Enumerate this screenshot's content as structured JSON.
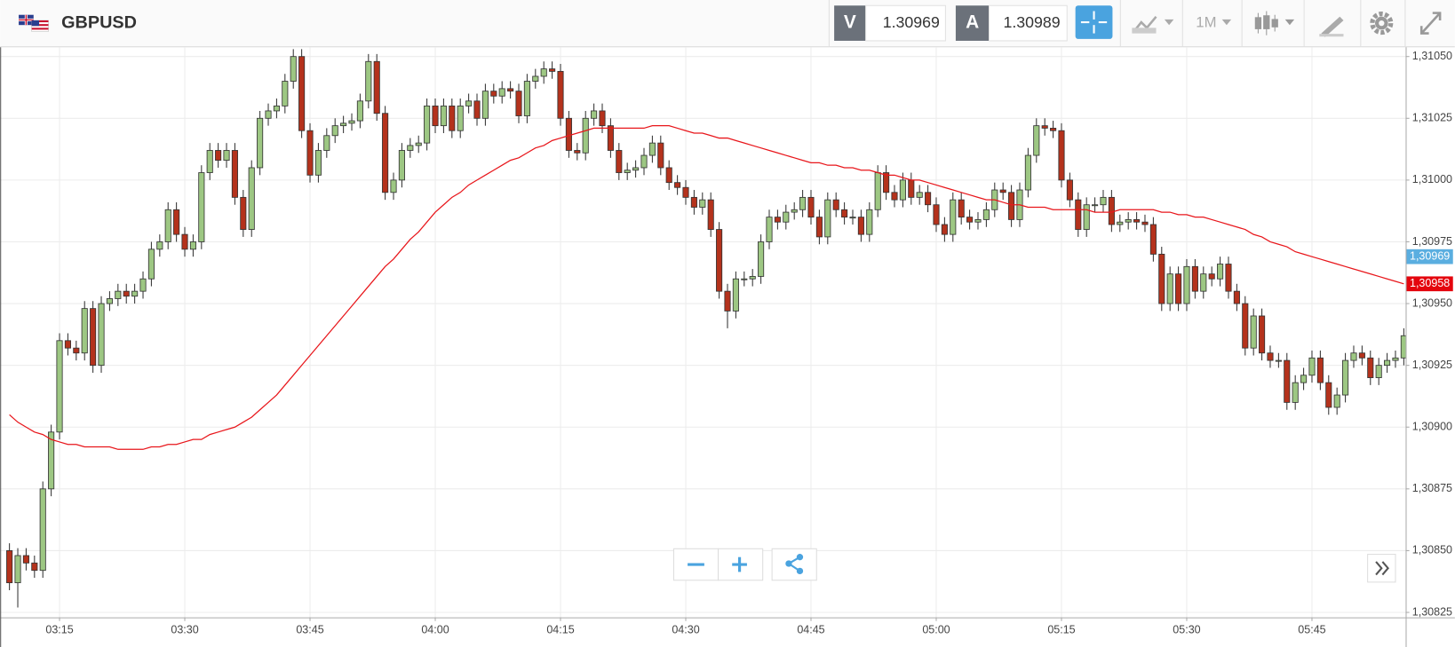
{
  "header": {
    "symbol": "GBPUSD",
    "bid_label": "V",
    "bid": "1.30969",
    "ask_label": "A",
    "ask": "1.30989",
    "timeframe": "1M"
  },
  "chart_data": {
    "type": "candlestick",
    "categories": [
      "03:09",
      "03:10",
      "03:11",
      "03:12",
      "03:13",
      "03:14",
      "03:15",
      "03:16",
      "03:17",
      "03:18",
      "03:19",
      "03:20",
      "03:21",
      "03:22",
      "03:23",
      "03:24",
      "03:25",
      "03:26",
      "03:27",
      "03:28",
      "03:29",
      "03:30",
      "03:31",
      "03:32",
      "03:33",
      "03:34",
      "03:35",
      "03:36",
      "03:37",
      "03:38",
      "03:39",
      "03:40",
      "03:41",
      "03:42",
      "03:43",
      "03:44",
      "03:45",
      "03:46",
      "03:47",
      "03:48",
      "03:49",
      "03:50",
      "03:51",
      "03:52",
      "03:53",
      "03:54",
      "03:55",
      "03:56",
      "03:57",
      "03:58",
      "03:59",
      "04:00",
      "04:01",
      "04:02",
      "04:03",
      "04:04",
      "04:05",
      "04:06",
      "04:07",
      "04:08",
      "04:09",
      "04:10",
      "04:11",
      "04:12",
      "04:13",
      "04:14",
      "04:15",
      "04:16",
      "04:17",
      "04:18",
      "04:19",
      "04:20",
      "04:21",
      "04:22",
      "04:23",
      "04:24",
      "04:25",
      "04:26",
      "04:27",
      "04:28",
      "04:29",
      "04:30",
      "04:31",
      "04:32",
      "04:33",
      "04:34",
      "04:35",
      "04:36",
      "04:37",
      "04:38",
      "04:39",
      "04:40",
      "04:41",
      "04:42",
      "04:43",
      "04:44",
      "04:45",
      "04:46",
      "04:47",
      "04:48",
      "04:49",
      "04:50",
      "04:51",
      "04:52",
      "04:53",
      "04:54",
      "04:55",
      "04:56",
      "04:57",
      "04:58",
      "04:59",
      "05:00",
      "05:01",
      "05:02",
      "05:03",
      "05:04",
      "05:05",
      "05:06",
      "05:07",
      "05:08",
      "05:09",
      "05:10",
      "05:11",
      "05:12",
      "05:13",
      "05:14",
      "05:15",
      "05:16",
      "05:17",
      "05:18",
      "05:19",
      "05:20",
      "05:21",
      "05:22",
      "05:23",
      "05:24",
      "05:25",
      "05:26",
      "05:27",
      "05:28",
      "05:29",
      "05:30",
      "05:31",
      "05:32",
      "05:33",
      "05:34",
      "05:35",
      "05:36",
      "05:37",
      "05:38",
      "05:39",
      "05:40",
      "05:41",
      "05:42",
      "05:43",
      "05:44",
      "05:45",
      "05:46",
      "05:47",
      "05:48",
      "05:49",
      "05:50",
      "05:51",
      "05:52",
      "05:53",
      "05:54",
      "05:55",
      "05:56"
    ],
    "open": [
      1.3085,
      1.30837,
      1.30848,
      1.30845,
      1.30842,
      1.30875,
      1.30898,
      1.30935,
      1.30932,
      1.3093,
      1.30948,
      1.30925,
      1.3095,
      1.30952,
      1.30955,
      1.30953,
      1.30955,
      1.3096,
      1.30972,
      1.30975,
      1.30988,
      1.30978,
      1.30972,
      1.30975,
      1.31003,
      1.31012,
      1.31008,
      1.31012,
      1.30993,
      1.3098,
      1.31005,
      1.31025,
      1.31028,
      1.3103,
      1.3104,
      1.3105,
      1.3102,
      1.31002,
      1.31012,
      1.31018,
      1.31022,
      1.31023,
      1.31024,
      1.31032,
      1.31048,
      1.31027,
      1.30995,
      1.31,
      1.31012,
      1.31014,
      1.31015,
      1.3103,
      1.31022,
      1.3103,
      1.3102,
      1.3103,
      1.31032,
      1.31025,
      1.31036,
      1.31034,
      1.31037,
      1.31036,
      1.31026,
      1.3104,
      1.31042,
      1.31045,
      1.31044,
      1.31025,
      1.31012,
      1.31011,
      1.31025,
      1.31028,
      1.31022,
      1.31012,
      1.31003,
      1.31004,
      1.31005,
      1.3101,
      1.31015,
      1.31005,
      1.30999,
      1.30997,
      1.30993,
      1.30989,
      1.30992,
      1.3098,
      1.30955,
      1.30947,
      1.3096,
      1.3096,
      1.30961,
      1.30975,
      1.30985,
      1.30983,
      1.30987,
      1.30988,
      1.30993,
      1.30985,
      1.30977,
      1.30992,
      1.30988,
      1.30985,
      1.30985,
      1.30978,
      1.30988,
      1.31003,
      1.30995,
      1.30992,
      1.31,
      1.30993,
      1.30995,
      1.3099,
      1.30982,
      1.30978,
      1.30992,
      1.30985,
      1.30983,
      1.30984,
      1.30988,
      1.30996,
      1.30995,
      1.30984,
      1.30996,
      1.3101,
      1.31022,
      1.31021,
      1.3102,
      1.31,
      1.30992,
      1.3098,
      1.3099,
      1.3099,
      1.30993,
      1.30982,
      1.30983,
      1.30984,
      1.30983,
      1.30982,
      1.3097,
      1.3095,
      1.30962,
      1.3095,
      1.30965,
      1.30955,
      1.30962,
      1.3096,
      1.30966,
      1.30955,
      1.3095,
      1.30932,
      1.30945,
      1.3093,
      1.30927,
      1.30927,
      1.3091,
      1.30918,
      1.30921,
      1.30928,
      1.30918,
      1.30908,
      1.30913,
      1.30927,
      1.3093,
      1.30928,
      1.3092,
      1.30925,
      1.30927,
      1.30928
    ],
    "high": [
      1.30853,
      1.30851,
      1.30851,
      1.30848,
      1.30878,
      1.30901,
      1.30938,
      1.30938,
      1.30935,
      1.30951,
      1.30951,
      1.30953,
      1.30955,
      1.30958,
      1.30958,
      1.30958,
      1.30963,
      1.30975,
      1.30978,
      1.30991,
      1.30991,
      1.30981,
      1.30978,
      1.31006,
      1.31015,
      1.31015,
      1.31015,
      1.31015,
      1.30996,
      1.31008,
      1.31028,
      1.31031,
      1.31033,
      1.31043,
      1.31053,
      1.31053,
      1.31023,
      1.31015,
      1.31021,
      1.31025,
      1.31026,
      1.31027,
      1.31035,
      1.31051,
      1.31051,
      1.3103,
      1.31003,
      1.31015,
      1.31017,
      1.31018,
      1.31033,
      1.31033,
      1.31033,
      1.31033,
      1.31033,
      1.31035,
      1.31035,
      1.31039,
      1.31039,
      1.3104,
      1.3104,
      1.31039,
      1.31043,
      1.31045,
      1.31048,
      1.31048,
      1.31047,
      1.31028,
      1.31015,
      1.31028,
      1.31031,
      1.31031,
      1.31025,
      1.31015,
      1.31007,
      1.31008,
      1.31013,
      1.31018,
      1.31018,
      1.31008,
      1.31002,
      1.31,
      1.30996,
      1.30995,
      1.30995,
      1.30983,
      1.30958,
      1.30963,
      1.30963,
      1.30964,
      1.30978,
      1.30988,
      1.30988,
      1.3099,
      1.30991,
      1.30996,
      1.30996,
      1.30988,
      1.30995,
      1.30995,
      1.30991,
      1.30988,
      1.30988,
      1.30991,
      1.31006,
      1.31006,
      1.30998,
      1.31003,
      1.31003,
      1.30998,
      1.30998,
      1.30993,
      1.30985,
      1.30995,
      1.30995,
      1.30988,
      1.30987,
      1.30991,
      1.30999,
      1.30999,
      1.30998,
      1.30999,
      1.31013,
      1.31025,
      1.31025,
      1.31024,
      1.31023,
      1.31003,
      1.30995,
      1.30993,
      1.30993,
      1.30996,
      1.30996,
      1.30986,
      1.30987,
      1.30987,
      1.30986,
      1.30985,
      1.30973,
      1.30965,
      1.30965,
      1.30968,
      1.30968,
      1.30965,
      1.30965,
      1.30969,
      1.30969,
      1.30958,
      1.30953,
      1.30948,
      1.30948,
      1.30933,
      1.3093,
      1.3093,
      1.30921,
      1.30924,
      1.30931,
      1.30931,
      1.30921,
      1.30916,
      1.3093,
      1.30933,
      1.30933,
      1.30931,
      1.30928,
      1.3093,
      1.30931,
      1.3094
    ],
    "low": [
      1.30834,
      1.30827,
      1.30842,
      1.30839,
      1.30839,
      1.30872,
      1.30895,
      1.30929,
      1.30927,
      1.30927,
      1.30922,
      1.30922,
      1.30947,
      1.30949,
      1.3095,
      1.3095,
      1.30952,
      1.30957,
      1.30969,
      1.30972,
      1.30975,
      1.30969,
      1.30969,
      1.30972,
      1.31,
      1.31005,
      1.31005,
      1.3099,
      1.30977,
      1.30977,
      1.31002,
      1.31022,
      1.31025,
      1.31027,
      1.31037,
      1.31017,
      1.30999,
      1.30999,
      1.31009,
      1.31015,
      1.31019,
      1.3102,
      1.31021,
      1.31029,
      1.31024,
      1.30992,
      1.30992,
      1.30997,
      1.31009,
      1.31011,
      1.31012,
      1.31019,
      1.31019,
      1.31017,
      1.31017,
      1.31027,
      1.31022,
      1.31022,
      1.31031,
      1.31031,
      1.31033,
      1.31023,
      1.31023,
      1.31037,
      1.31039,
      1.31041,
      1.31022,
      1.31009,
      1.31008,
      1.31008,
      1.31022,
      1.31019,
      1.31009,
      1.31,
      1.31,
      1.31001,
      1.31002,
      1.31007,
      1.31002,
      1.30996,
      1.30994,
      1.3099,
      1.30986,
      1.30986,
      1.30977,
      1.30952,
      1.3094,
      1.30944,
      1.30957,
      1.30957,
      1.30958,
      1.30972,
      1.3098,
      1.3098,
      1.30984,
      1.30985,
      1.30982,
      1.30974,
      1.30974,
      1.30985,
      1.30982,
      1.30982,
      1.30975,
      1.30975,
      1.30985,
      1.30992,
      1.30989,
      1.30989,
      1.3099,
      1.3099,
      1.30987,
      1.30979,
      1.30975,
      1.30975,
      1.30982,
      1.3098,
      1.3098,
      1.30981,
      1.30985,
      1.30992,
      1.30981,
      1.30981,
      1.30993,
      1.31007,
      1.31018,
      1.31017,
      1.30997,
      1.30989,
      1.30977,
      1.30977,
      1.30987,
      1.30987,
      1.30979,
      1.30979,
      1.3098,
      1.3098,
      1.30979,
      1.30967,
      1.30947,
      1.30947,
      1.30947,
      1.30947,
      1.30952,
      1.30952,
      1.30957,
      1.30957,
      1.30952,
      1.30947,
      1.30929,
      1.30929,
      1.30927,
      1.30924,
      1.30924,
      1.30907,
      1.30907,
      1.30915,
      1.30918,
      1.30915,
      1.30905,
      1.30905,
      1.3091,
      1.30924,
      1.30925,
      1.30917,
      1.30917,
      1.30922,
      1.30924,
      1.30925
    ],
    "close": [
      1.30837,
      1.30848,
      1.30845,
      1.30842,
      1.30875,
      1.30898,
      1.30935,
      1.30932,
      1.3093,
      1.30948,
      1.30925,
      1.3095,
      1.30952,
      1.30955,
      1.30953,
      1.30955,
      1.3096,
      1.30972,
      1.30975,
      1.30988,
      1.30978,
      1.30972,
      1.30975,
      1.31003,
      1.31012,
      1.31008,
      1.31012,
      1.30993,
      1.3098,
      1.31005,
      1.31025,
      1.31028,
      1.3103,
      1.3104,
      1.3105,
      1.3102,
      1.31002,
      1.31012,
      1.31018,
      1.31022,
      1.31023,
      1.31024,
      1.31032,
      1.31048,
      1.31027,
      1.30995,
      1.31,
      1.31012,
      1.31014,
      1.31015,
      1.3103,
      1.31022,
      1.3103,
      1.3102,
      1.3103,
      1.31032,
      1.31025,
      1.31036,
      1.31034,
      1.31037,
      1.31036,
      1.31026,
      1.3104,
      1.31042,
      1.31045,
      1.31044,
      1.31025,
      1.31012,
      1.31011,
      1.31025,
      1.31028,
      1.31022,
      1.31012,
      1.31003,
      1.31004,
      1.31005,
      1.3101,
      1.31015,
      1.31005,
      1.30999,
      1.30997,
      1.30993,
      1.30989,
      1.30992,
      1.3098,
      1.30955,
      1.30947,
      1.3096,
      1.3096,
      1.30961,
      1.30975,
      1.30985,
      1.30983,
      1.30987,
      1.30988,
      1.30993,
      1.30985,
      1.30977,
      1.30992,
      1.30988,
      1.30985,
      1.30985,
      1.30978,
      1.30988,
      1.31003,
      1.30995,
      1.30992,
      1.31,
      1.30993,
      1.30995,
      1.3099,
      1.30982,
      1.30978,
      1.30992,
      1.30985,
      1.30983,
      1.30984,
      1.30988,
      1.30996,
      1.30995,
      1.30984,
      1.30996,
      1.3101,
      1.31022,
      1.31021,
      1.3102,
      1.31,
      1.30992,
      1.3098,
      1.3099,
      1.3099,
      1.30993,
      1.30982,
      1.30983,
      1.30984,
      1.30983,
      1.30982,
      1.3097,
      1.3095,
      1.30962,
      1.3095,
      1.30965,
      1.30955,
      1.30962,
      1.3096,
      1.30966,
      1.30955,
      1.3095,
      1.30932,
      1.30945,
      1.3093,
      1.30927,
      1.30927,
      1.3091,
      1.30918,
      1.30921,
      1.30928,
      1.30918,
      1.30908,
      1.30913,
      1.30927,
      1.3093,
      1.30928,
      1.3092,
      1.30925,
      1.30927,
      1.30928,
      1.30937
    ],
    "up_color": "#9dc783",
    "down_color": "#b4321c",
    "series": [
      {
        "color": "#e8161b",
        "values": [
          1.30905,
          1.30902,
          1.309,
          1.30898,
          1.30897,
          1.30895,
          1.30894,
          1.30893,
          1.30893,
          1.30892,
          1.30892,
          1.30892,
          1.30892,
          1.30891,
          1.30891,
          1.30891,
          1.30891,
          1.30892,
          1.30892,
          1.30893,
          1.30893,
          1.30894,
          1.30895,
          1.30895,
          1.30897,
          1.30898,
          1.30899,
          1.309,
          1.30902,
          1.30904,
          1.30907,
          1.3091,
          1.30913,
          1.30917,
          1.30921,
          1.30925,
          1.30929,
          1.30933,
          1.30937,
          1.30941,
          1.30945,
          1.30949,
          1.30953,
          1.30957,
          1.30961,
          1.30965,
          1.30968,
          1.30972,
          1.30976,
          1.30979,
          1.30983,
          1.30987,
          1.3099,
          1.30993,
          1.30995,
          1.30998,
          1.31,
          1.31002,
          1.31004,
          1.31006,
          1.31008,
          1.31009,
          1.31011,
          1.31013,
          1.31014,
          1.31016,
          1.31017,
          1.31018,
          1.31019,
          1.3102,
          1.31021,
          1.31021,
          1.31021,
          1.31021,
          1.31021,
          1.31021,
          1.31021,
          1.31022,
          1.31022,
          1.31022,
          1.31021,
          1.3102,
          1.31019,
          1.31019,
          1.31018,
          1.31017,
          1.31017,
          1.31016,
          1.31015,
          1.31014,
          1.31013,
          1.31012,
          1.31011,
          1.3101,
          1.31009,
          1.31008,
          1.31007,
          1.31007,
          1.31006,
          1.31006,
          1.31005,
          1.31005,
          1.31004,
          1.31004,
          1.31003,
          1.31002,
          1.31002,
          1.31001,
          1.31,
          1.31,
          1.30999,
          1.30998,
          1.30997,
          1.30996,
          1.30995,
          1.30994,
          1.30993,
          1.30992,
          1.30992,
          1.30991,
          1.3099,
          1.3099,
          1.30989,
          1.30989,
          1.30989,
          1.30988,
          1.30988,
          1.30988,
          1.30988,
          1.30988,
          1.30987,
          1.30987,
          1.30987,
          1.30988,
          1.30988,
          1.30988,
          1.30988,
          1.30988,
          1.30987,
          1.30987,
          1.30986,
          1.30986,
          1.30985,
          1.30985,
          1.30984,
          1.30983,
          1.30982,
          1.30981,
          1.3098,
          1.30978,
          1.30977,
          1.30975,
          1.30974,
          1.30973,
          1.30971,
          1.3097,
          1.30969,
          1.30968,
          1.30967,
          1.30966,
          1.30965,
          1.30964,
          1.30963,
          1.30962,
          1.30961,
          1.3096,
          1.30959,
          1.30958
        ]
      }
    ],
    "ylim": [
      1.30823,
      1.31053
    ],
    "yticks": [
      {
        "value": 1.3105,
        "label": "1,31050"
      },
      {
        "value": 1.31025,
        "label": "1,31025"
      },
      {
        "value": 1.31,
        "label": "1,31000"
      },
      {
        "value": 1.30975,
        "label": "1,30975"
      },
      {
        "value": 1.3095,
        "label": "1,30950"
      },
      {
        "value": 1.30925,
        "label": "1,30925"
      },
      {
        "value": 1.309,
        "label": "1,30900"
      },
      {
        "value": 1.30875,
        "label": "1,30875"
      },
      {
        "value": 1.3085,
        "label": "1,30850"
      },
      {
        "value": 1.30825,
        "label": "1,30825"
      }
    ],
    "xticks": [
      "03:15",
      "03:30",
      "03:45",
      "04:00",
      "04:15",
      "04:30",
      "04:45",
      "05:00",
      "05:15",
      "05:30",
      "05:45"
    ],
    "grid": true,
    "price_markers": [
      {
        "value": 1.30969,
        "label": "1,30969",
        "color": "#5aaee0"
      },
      {
        "value": 1.30958,
        "label": "1,30958",
        "color": "#e4050d"
      }
    ]
  }
}
